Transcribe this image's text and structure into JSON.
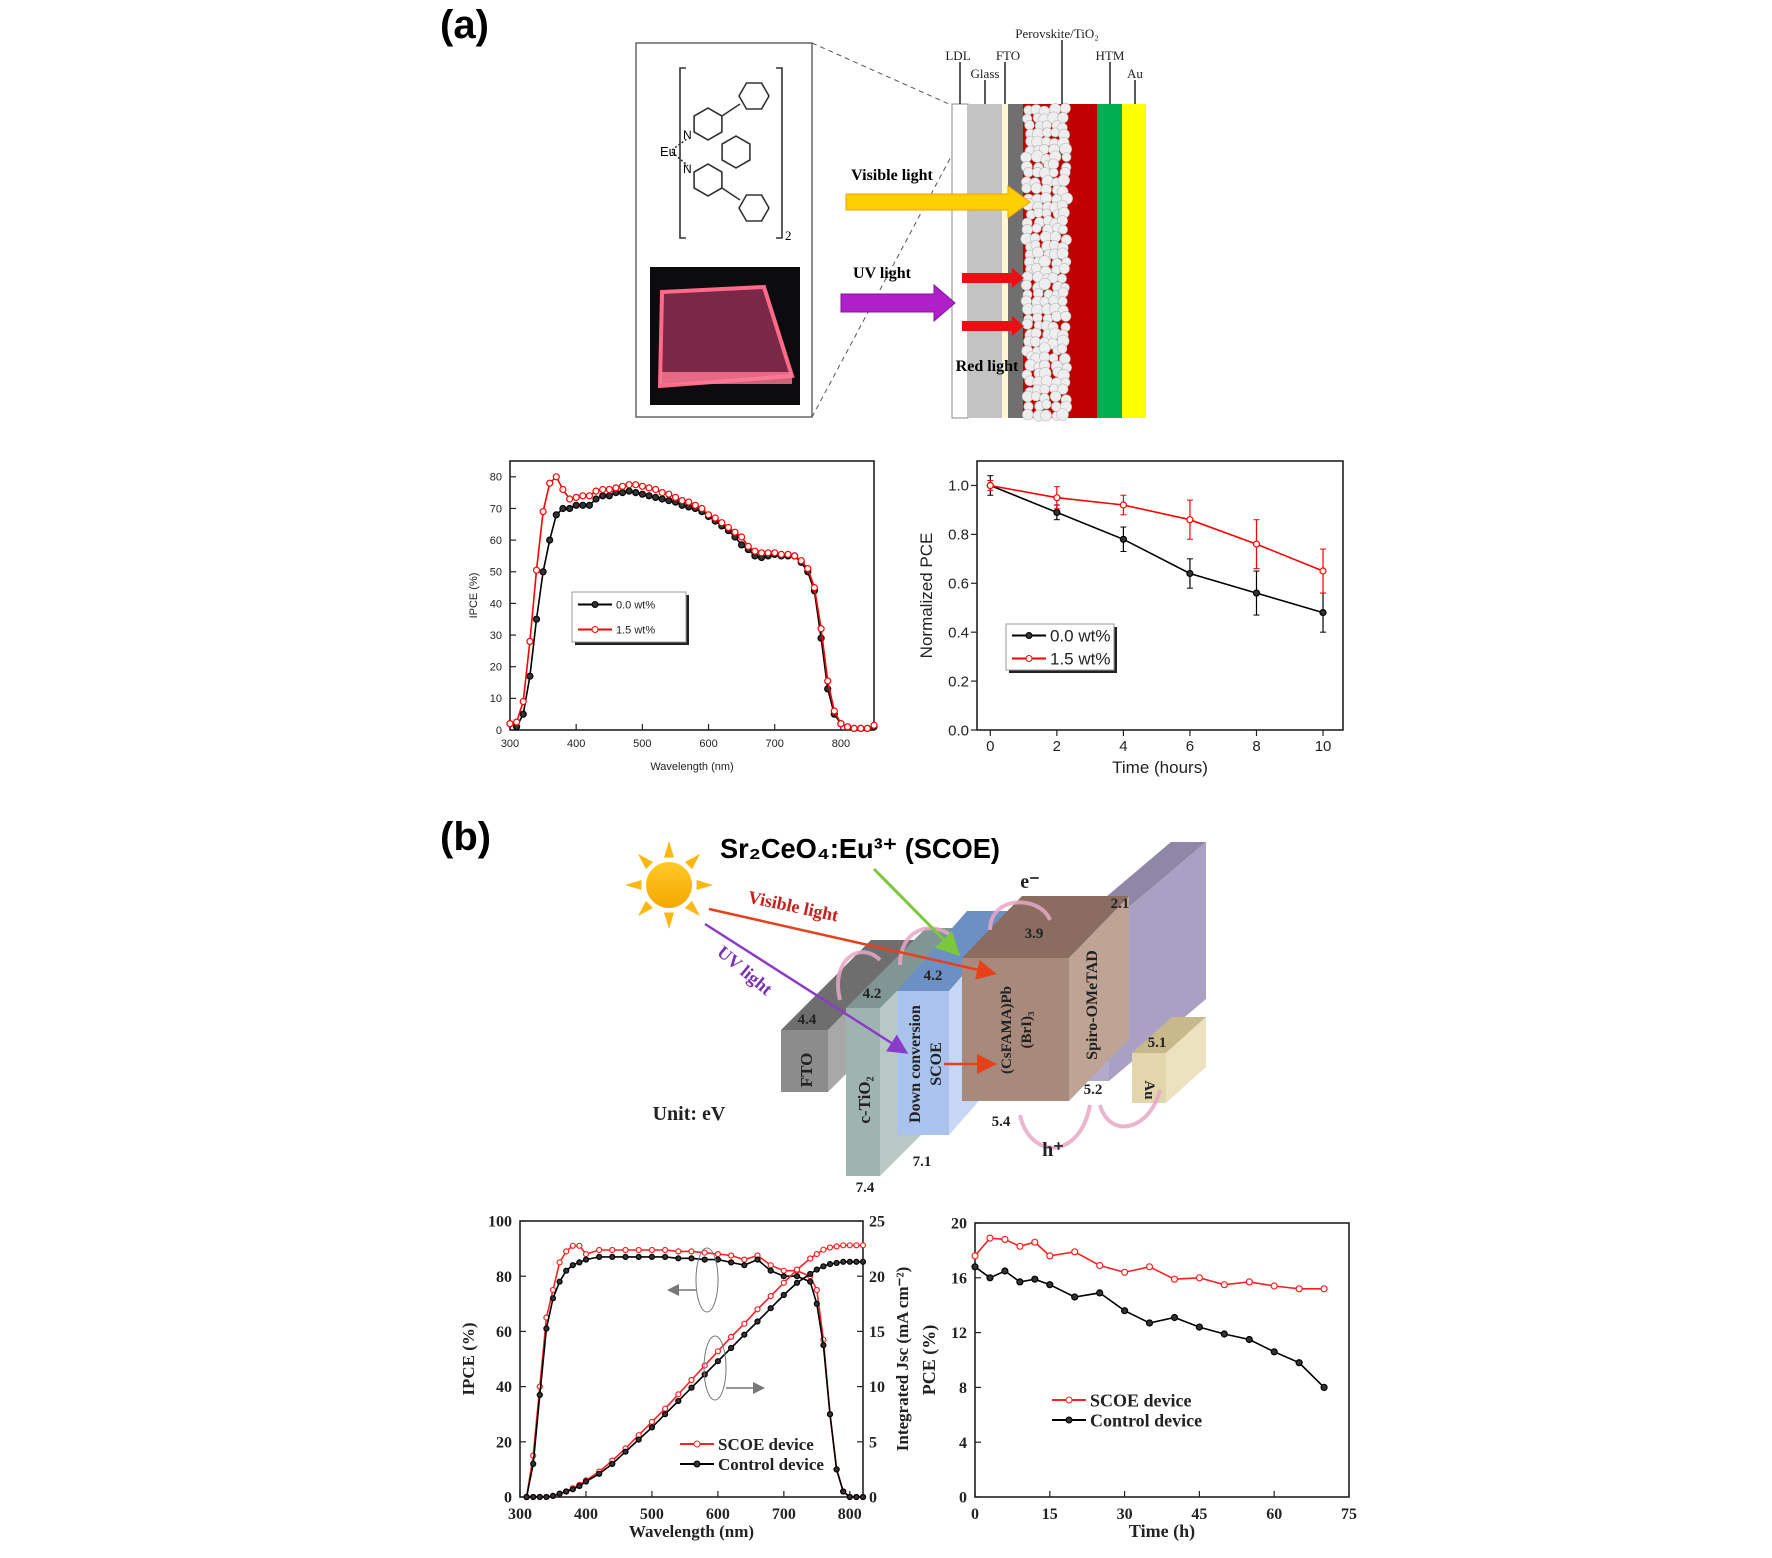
{
  "panel_a": {
    "label": "(a)",
    "molecule": {
      "metal": "Eu",
      "n1": "N",
      "n2": "N",
      "subscript": "2"
    },
    "device_layers": {
      "ldl": "LDL",
      "glass": "Glass",
      "fto": "FTO",
      "perovskite": "Perovskite/TiO₂",
      "htm": "HTM",
      "au": "Au"
    },
    "light": {
      "visible": "Visible light",
      "uv": "UV light",
      "red": "Red light"
    },
    "colors": {
      "glass": "#c3c3c3",
      "fto": "#fff8d0",
      "tio2": "#707070",
      "perovskite": "#c00000",
      "htm": "#00b050",
      "au": "#ffff00",
      "visible_arrow": "#ffd000",
      "uv_arrow": "#a020c0",
      "red_arrow": "#e81010"
    }
  },
  "panel_b": {
    "label": "(b)",
    "title": "Sr₂CeO₄:Eu³⁺ (SCOE)",
    "unit": "Unit: eV",
    "electron": "e⁻",
    "hole": "h⁺",
    "visible": "Visible light",
    "uv": "UV light",
    "blocks": {
      "fto": {
        "name": "FTO",
        "top": "4.4"
      },
      "tio2": {
        "name": "c-TiO₂",
        "top": "4.2",
        "bottom": "7.4"
      },
      "scoe": {
        "name1": "Down conversion",
        "name2": "SCOE",
        "top": "4.2",
        "bottom": "7.1"
      },
      "perovskite": {
        "name1": "(CsFAMA)Pb",
        "name2": "(BrI)₃",
        "top": "3.9",
        "bottom": "5.4"
      },
      "spiro": {
        "name": "Spiro-OMeTAD",
        "top": "2.1",
        "bottom": "5.2"
      },
      "au": {
        "name": "Au",
        "top": "5.1"
      }
    }
  },
  "chart_data": [
    {
      "id": "a-ipce",
      "type": "line",
      "title": "",
      "xlabel": "Wavelength (nm)",
      "ylabel": "IPCE (%)",
      "xlim": [
        300,
        850
      ],
      "ylim": [
        0,
        85
      ],
      "xticks": [
        300,
        400,
        500,
        600,
        700,
        800
      ],
      "yticks": [
        0,
        10,
        20,
        30,
        40,
        50,
        60,
        70,
        80
      ],
      "legend": "center-left",
      "x": [
        300,
        310,
        320,
        330,
        340,
        350,
        360,
        370,
        380,
        390,
        400,
        410,
        420,
        430,
        440,
        450,
        460,
        470,
        480,
        490,
        500,
        510,
        520,
        530,
        540,
        550,
        560,
        570,
        580,
        590,
        600,
        610,
        620,
        630,
        640,
        650,
        660,
        670,
        680,
        690,
        700,
        710,
        720,
        730,
        740,
        750,
        760,
        770,
        780,
        790,
        800,
        810,
        820,
        830,
        840,
        850
      ],
      "series": [
        {
          "name": "0.0 wt%",
          "color": "#000000",
          "values": [
            2,
            1,
            5,
            17,
            35,
            50,
            60,
            68,
            70,
            70,
            71,
            71,
            71,
            73,
            74,
            74,
            75,
            75,
            75.5,
            75,
            74.5,
            74,
            73.5,
            73,
            72.5,
            72,
            71,
            70.5,
            70,
            69,
            67.5,
            66,
            64.5,
            63,
            61,
            58.5,
            57,
            55,
            54.5,
            55,
            55.5,
            55,
            55,
            55,
            53,
            50,
            44,
            29,
            13,
            5,
            2,
            1,
            0.5,
            0.5,
            0.5,
            1
          ]
        },
        {
          "name": "1.5 wt%",
          "color": "#ff0000",
          "values": [
            2,
            2.5,
            9,
            28,
            50.5,
            69,
            78,
            80,
            76,
            73,
            73.5,
            74,
            74,
            75.5,
            76,
            76,
            76.5,
            77,
            77.5,
            77.5,
            77,
            76.5,
            76,
            75,
            74.5,
            73.5,
            72.5,
            72,
            71,
            70,
            68,
            67,
            65.5,
            64,
            62.5,
            61,
            58,
            56.5,
            56,
            56,
            56,
            55.5,
            55.5,
            55,
            53.5,
            51,
            45,
            32,
            15.5,
            6,
            2,
            1,
            0.5,
            0.5,
            0.5,
            1.5
          ]
        }
      ]
    },
    {
      "id": "a-stability",
      "type": "line",
      "title": "",
      "xlabel": "Time (hours)",
      "ylabel": "Normalized PCE",
      "xlim": [
        -0.4,
        10.6
      ],
      "ylim": [
        0,
        1.1
      ],
      "xticks": [
        0,
        2,
        4,
        6,
        8,
        10
      ],
      "yticks": [
        0.0,
        0.2,
        0.4,
        0.6,
        0.8,
        1.0
      ],
      "ytick_labels": [
        "0.0",
        "0.2",
        "0.4",
        "0.6",
        "0.8",
        "1.0"
      ],
      "legend": "bottom-left",
      "x": [
        0,
        2,
        4,
        6,
        8,
        10
      ],
      "series": [
        {
          "name": "0.0 wt%",
          "color": "#000000",
          "values": [
            1.0,
            0.89,
            0.78,
            0.64,
            0.56,
            0.48
          ],
          "errors": [
            0.04,
            0.03,
            0.05,
            0.06,
            0.09,
            0.08
          ]
        },
        {
          "name": "1.5 wt%",
          "color": "#ff0000",
          "values": [
            1.0,
            0.95,
            0.92,
            0.86,
            0.76,
            0.65
          ],
          "errors": [
            0.02,
            0.045,
            0.04,
            0.08,
            0.1,
            0.09
          ]
        }
      ]
    },
    {
      "id": "b-ipce",
      "type": "line",
      "title": "",
      "xlabel": "Wavelength (nm)",
      "ylabel": "IPCE (%)",
      "y2label": "Integrated Jsc (mA cm⁻²)",
      "xlim": [
        300,
        820
      ],
      "ylim": [
        0,
        100
      ],
      "y2lim": [
        0,
        25
      ],
      "xticks": [
        300,
        400,
        500,
        600,
        700,
        800
      ],
      "yticks": [
        0,
        20,
        40,
        60,
        80,
        100
      ],
      "y2ticks": [
        0,
        5,
        10,
        15,
        20,
        25
      ],
      "legend": "bottom-right",
      "x": [
        310,
        320,
        330,
        340,
        350,
        360,
        370,
        380,
        390,
        400,
        420,
        440,
        460,
        480,
        500,
        520,
        540,
        560,
        580,
        600,
        620,
        640,
        660,
        680,
        700,
        720,
        740,
        750,
        760,
        770,
        780,
        790,
        800,
        810,
        820
      ],
      "series": [
        {
          "name": "SCOE device",
          "color": "#ff2020",
          "axis": "left",
          "values": [
            0,
            15,
            40,
            65,
            75,
            85,
            89,
            91,
            91,
            88,
            89.5,
            89.5,
            89.5,
            89.5,
            89.5,
            89.5,
            89,
            89,
            88.5,
            88,
            87.5,
            86,
            87.5,
            84,
            82,
            82,
            80,
            75,
            57,
            30,
            10,
            2,
            0,
            0,
            0
          ]
        },
        {
          "name": "Control device",
          "color": "#000000",
          "axis": "left",
          "values": [
            0,
            12,
            37,
            61,
            72,
            78,
            82,
            84,
            85,
            86,
            87,
            87,
            87,
            87,
            87,
            87,
            86.5,
            86.5,
            86,
            86,
            85,
            84,
            86,
            82,
            80,
            80,
            78,
            70,
            55,
            30,
            10,
            2,
            0,
            0,
            0
          ]
        },
        {
          "name": "SCOE device Jsc",
          "legend": false,
          "color": "#ff2020",
          "axis": "right",
          "values": [
            0,
            0,
            0,
            0,
            0.1,
            0.3,
            0.5,
            0.8,
            1.1,
            1.5,
            2.3,
            3.3,
            4.4,
            5.6,
            6.8,
            8.0,
            9.3,
            10.6,
            11.9,
            13.2,
            14.5,
            15.7,
            17.0,
            18.2,
            19.4,
            20.6,
            21.6,
            22.0,
            22.4,
            22.6,
            22.7,
            22.8,
            22.8,
            22.8,
            22.8
          ]
        },
        {
          "name": "Control device Jsc",
          "legend": false,
          "color": "#000000",
          "axis": "right",
          "values": [
            0,
            0,
            0,
            0,
            0.1,
            0.3,
            0.5,
            0.7,
            1.0,
            1.4,
            2.1,
            3.0,
            4.1,
            5.2,
            6.3,
            7.5,
            8.7,
            9.9,
            11.1,
            12.3,
            13.5,
            14.7,
            15.9,
            17.1,
            18.3,
            19.4,
            20.2,
            20.6,
            20.9,
            21.1,
            21.2,
            21.3,
            21.3,
            21.3,
            21.3
          ]
        }
      ]
    },
    {
      "id": "b-stability",
      "type": "line",
      "title": "",
      "xlabel": "Time (h)",
      "ylabel": "PCE (%)",
      "xlim": [
        0,
        75
      ],
      "ylim": [
        0,
        20
      ],
      "xticks": [
        0,
        15,
        30,
        45,
        60,
        75
      ],
      "yticks": [
        0,
        4,
        8,
        12,
        16,
        20
      ],
      "legend": "center-left",
      "x": [
        0,
        3,
        6,
        9,
        12,
        15,
        20,
        25,
        30,
        35,
        40,
        45,
        50,
        55,
        60,
        65,
        70
      ],
      "series": [
        {
          "name": "SCOE device",
          "color": "#ff2020",
          "values": [
            17.6,
            18.9,
            18.8,
            18.3,
            18.6,
            17.6,
            17.9,
            16.9,
            16.4,
            16.8,
            15.9,
            16.0,
            15.5,
            15.7,
            15.4,
            15.2,
            15.2
          ]
        },
        {
          "name": "Control device",
          "color": "#000000",
          "values": [
            16.8,
            16.0,
            16.5,
            15.7,
            15.9,
            15.5,
            14.6,
            14.9,
            13.6,
            12.7,
            13.1,
            12.4,
            11.9,
            11.5,
            10.6,
            9.8,
            8.0
          ]
        }
      ]
    }
  ]
}
